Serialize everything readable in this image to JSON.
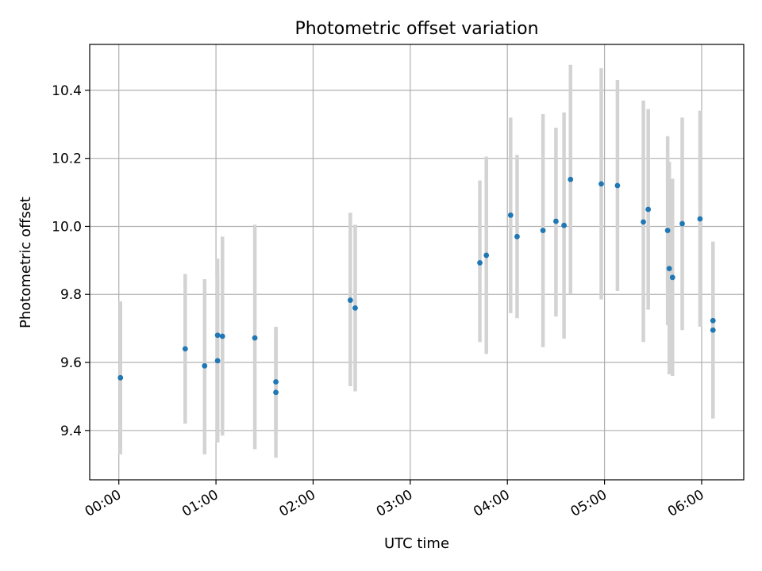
{
  "chart_data": {
    "type": "scatter",
    "title": "Photometric offset variation",
    "xlabel": "UTC time",
    "ylabel": "Photometric offset",
    "x_unit": "UTC time (HH:MM)",
    "xlim": [
      "23:42",
      "06:26"
    ],
    "ylim": [
      9.255,
      10.535
    ],
    "x_ticks": [
      "00:00",
      "01:00",
      "02:00",
      "03:00",
      "04:00",
      "05:00",
      "06:00"
    ],
    "y_ticks": [
      9.4,
      9.6,
      9.8,
      10.0,
      10.2,
      10.4
    ],
    "y_tick_labels": [
      "9.4",
      "9.6",
      "9.8",
      "10.0",
      "10.2",
      "10.4"
    ],
    "grid": true,
    "legend": "none",
    "errorbars": "vertical, light gray",
    "points": [
      {
        "x": "00:01",
        "y": 9.555,
        "err_low": 9.33,
        "err_high": 9.78
      },
      {
        "x": "00:41",
        "y": 9.64,
        "err_low": 9.42,
        "err_high": 9.86
      },
      {
        "x": "00:53",
        "y": 9.59,
        "err_low": 9.33,
        "err_high": 9.845
      },
      {
        "x": "01:01",
        "y": 9.68,
        "err_low": 9.365,
        "err_high": 9.905
      },
      {
        "x": "01:01",
        "y": 9.605,
        "err_low": 9.365,
        "err_high": 9.85
      },
      {
        "x": "01:04",
        "y": 9.677,
        "err_low": 9.385,
        "err_high": 9.97
      },
      {
        "x": "01:24",
        "y": 9.672,
        "err_low": 9.345,
        "err_high": 10.005
      },
      {
        "x": "01:37",
        "y": 9.543,
        "err_low": 9.39,
        "err_high": 9.705
      },
      {
        "x": "01:37",
        "y": 9.512,
        "err_low": 9.32,
        "err_high": 9.7
      },
      {
        "x": "02:23",
        "y": 9.783,
        "err_low": 9.53,
        "err_high": 10.04
      },
      {
        "x": "02:26",
        "y": 9.76,
        "err_low": 9.515,
        "err_high": 10.005
      },
      {
        "x": "03:43",
        "y": 9.893,
        "err_low": 9.66,
        "err_high": 10.135
      },
      {
        "x": "03:47",
        "y": 9.915,
        "err_low": 9.625,
        "err_high": 10.205
      },
      {
        "x": "04:02",
        "y": 10.033,
        "err_low": 9.745,
        "err_high": 10.32
      },
      {
        "x": "04:06",
        "y": 9.97,
        "err_low": 9.73,
        "err_high": 10.21
      },
      {
        "x": "04:22",
        "y": 9.988,
        "err_low": 9.645,
        "err_high": 10.33
      },
      {
        "x": "04:30",
        "y": 10.015,
        "err_low": 9.735,
        "err_high": 10.29
      },
      {
        "x": "04:35",
        "y": 10.003,
        "err_low": 9.67,
        "err_high": 10.335
      },
      {
        "x": "04:39",
        "y": 10.138,
        "err_low": 9.8,
        "err_high": 10.475
      },
      {
        "x": "04:58",
        "y": 10.125,
        "err_low": 9.785,
        "err_high": 10.465
      },
      {
        "x": "05:08",
        "y": 10.12,
        "err_low": 9.81,
        "err_high": 10.43
      },
      {
        "x": "05:24",
        "y": 10.013,
        "err_low": 9.66,
        "err_high": 10.37
      },
      {
        "x": "05:27",
        "y": 10.05,
        "err_low": 9.755,
        "err_high": 10.345
      },
      {
        "x": "05:39",
        "y": 9.988,
        "err_low": 9.71,
        "err_high": 10.265
      },
      {
        "x": "05:40",
        "y": 9.876,
        "err_low": 9.565,
        "err_high": 10.19
      },
      {
        "x": "05:42",
        "y": 9.85,
        "err_low": 9.56,
        "err_high": 10.14
      },
      {
        "x": "05:48",
        "y": 10.008,
        "err_low": 9.695,
        "err_high": 10.32
      },
      {
        "x": "05:59",
        "y": 10.022,
        "err_low": 9.705,
        "err_high": 10.34
      },
      {
        "x": "06:07",
        "y": 9.723,
        "err_low": 9.495,
        "err_high": 9.955
      },
      {
        "x": "06:07",
        "y": 9.695,
        "err_low": 9.435,
        "err_high": 9.955
      }
    ]
  },
  "colors": {
    "marker": "#1f77b4",
    "errorbar": "#d3d3d3",
    "grid": "#b0b0b0",
    "axes": "#000000"
  }
}
